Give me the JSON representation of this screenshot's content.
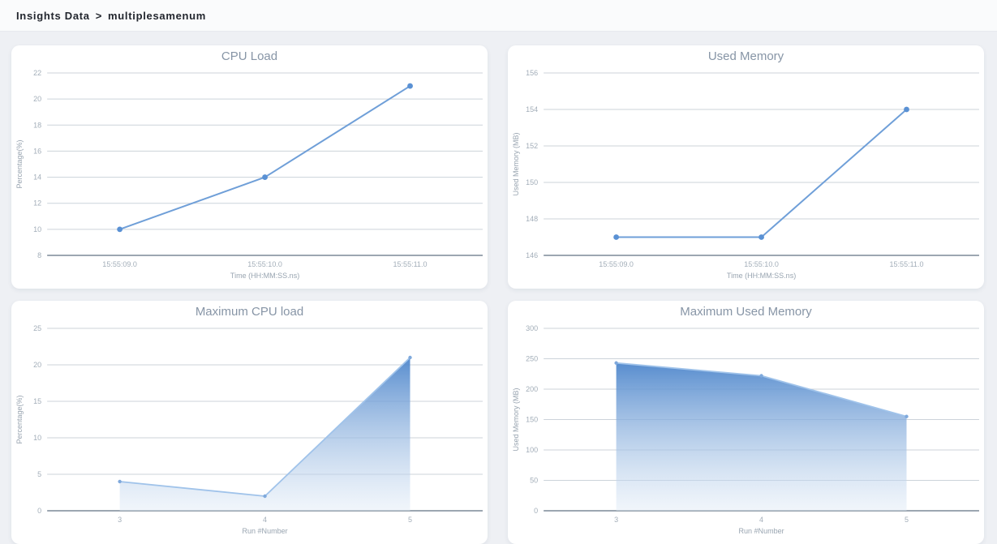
{
  "header": {
    "breadcrumb_root": "Insights Data",
    "breadcrumb_separator": ">",
    "breadcrumb_current": "multiplesamenum"
  },
  "theme": {
    "line_color": "#6f9fd8",
    "point_color": "#5a91d4",
    "area_line_color": "#a0c3ea",
    "area_point_color": "#7fa9dc",
    "area_gradient_top": "#4f87cc",
    "area_gradient_bottom": "#dfeaf6",
    "grid_line_color": "#ccd3da",
    "axis_line_color": "#8e9aa6",
    "tick_label_color": "#a3aeb9",
    "axis_name_color": "#98a4b0",
    "title_color": "#8795a6"
  },
  "chart_data": [
    {
      "id": "cpu-load",
      "type": "line",
      "title": "CPU Load",
      "categories": [
        "15:55:09.0",
        "15:55:10.0",
        "15:55:11.0"
      ],
      "values": [
        10,
        14,
        21
      ],
      "xlabel": "Time (HH:MM:SS.ns)",
      "ylabel": "Percentage(%)",
      "ymin": 8,
      "ymax": 22,
      "ystep": 2,
      "grid": true,
      "legend": "none"
    },
    {
      "id": "used-memory",
      "type": "line",
      "title": "Used Memory",
      "categories": [
        "15:55:09.0",
        "15:55:10.0",
        "15:55:11.0"
      ],
      "values": [
        147,
        147,
        154
      ],
      "xlabel": "Time (HH:MM:SS.ns)",
      "ylabel": "Used Memory (MB)",
      "ymin": 146,
      "ymax": 156,
      "ystep": 2,
      "grid": true,
      "legend": "none"
    },
    {
      "id": "max-cpu-load",
      "type": "area",
      "title": "Maximum CPU load",
      "categories": [
        "3",
        "4",
        "5"
      ],
      "values": [
        4,
        2,
        21
      ],
      "xlabel": "Run #Number",
      "ylabel": "Percentage(%)",
      "ymin": 0,
      "ymax": 25,
      "ystep": 5,
      "grid": true,
      "legend": "none"
    },
    {
      "id": "max-used-memory",
      "type": "area",
      "title": "Maximum Used Memory",
      "categories": [
        "3",
        "4",
        "5"
      ],
      "values": [
        243,
        222,
        155
      ],
      "xlabel": "Run #Number",
      "ylabel": "Used Memory (MB)",
      "ymin": 0,
      "ymax": 300,
      "ystep": 50,
      "grid": true,
      "legend": "none"
    }
  ]
}
